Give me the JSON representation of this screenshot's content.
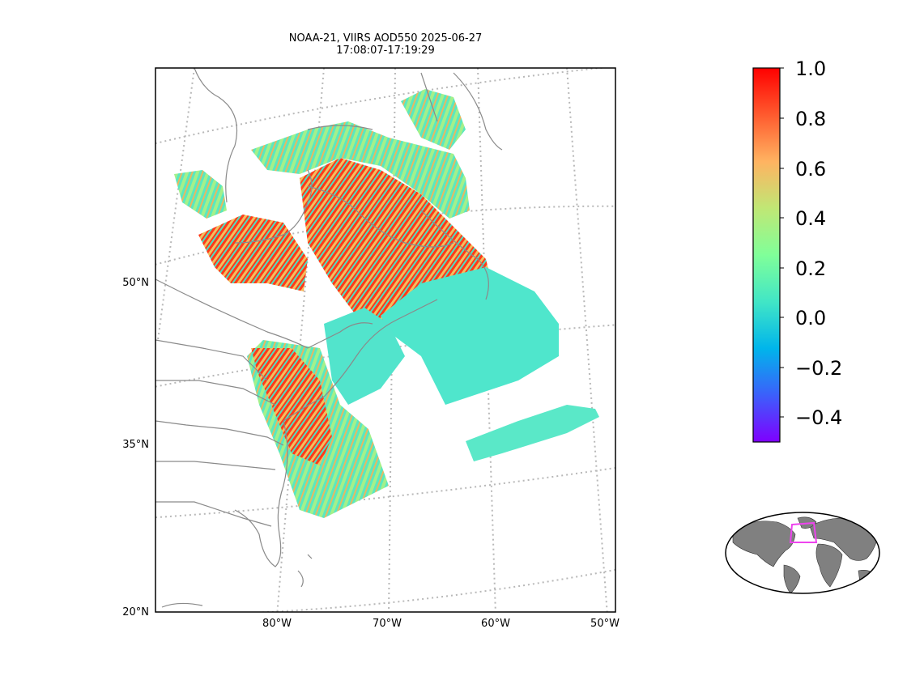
{
  "title_line1": "NOAA-21, VIIRS AOD550 2025-06-27",
  "title_line2": "17:08:07-17:19:29",
  "lat_labels": [
    "50°N",
    "35°N",
    "20°N"
  ],
  "lon_labels": [
    "80°W",
    "70°W",
    "60°W",
    "50°W"
  ],
  "colorbar": {
    "ticks": [
      "1.0",
      "0.8",
      "0.6",
      "0.4",
      "0.2",
      "0.0",
      "−0.2",
      "−0.4"
    ],
    "min": -0.5,
    "max": 1.0,
    "colormap": "rainbow",
    "colors": [
      "#7f00ff",
      "#3c5ffb",
      "#00b5eb",
      "#41e6c6",
      "#80ff99",
      "#c0e775",
      "#ffb361",
      "#ff5a2e",
      "#ff0000"
    ]
  },
  "inset": {
    "type": "global-locator",
    "land_color": "#808080",
    "box_color": "#ee44ee"
  },
  "colors": {
    "coastline": "#8a8a8a",
    "gridline": "#b8b8b8",
    "frame": "#000000"
  }
}
